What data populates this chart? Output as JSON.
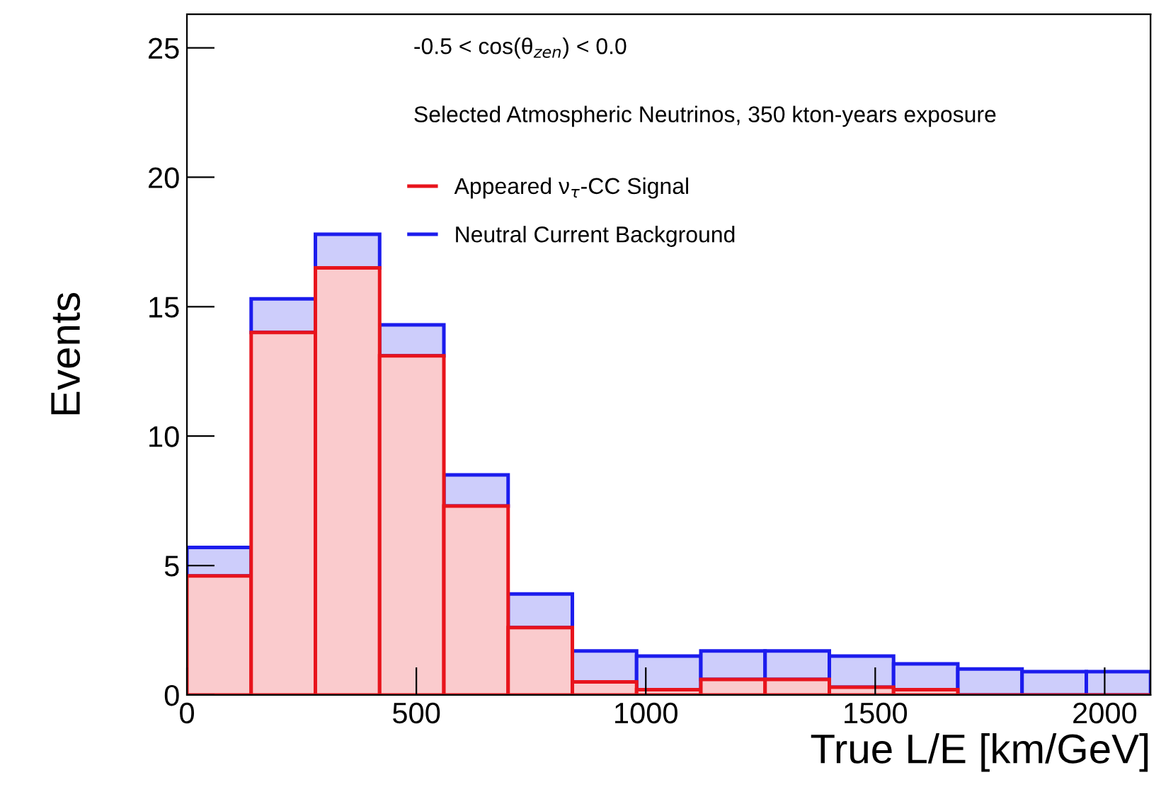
{
  "chart_data": {
    "type": "bar",
    "stacked": true,
    "xlabel": "True L/E [km/GeV]",
    "ylabel": "Events",
    "x": [
      70,
      210,
      350,
      490,
      630,
      770,
      910,
      1050,
      1190,
      1330,
      1470,
      1610,
      1750,
      1890,
      2030
    ],
    "series": [
      {
        "name": "Appeared ν$_{τ}$-CC Signal",
        "color": "#e8141c",
        "values": [
          4.6,
          14.0,
          16.5,
          13.1,
          7.3,
          2.6,
          0.5,
          0.2,
          0.6,
          0.6,
          0.3,
          0.2,
          0.0,
          0.0,
          0.0
        ]
      },
      {
        "name": "Neutral Current Background",
        "color": "#1c1ced",
        "values": [
          1.1,
          1.3,
          1.3,
          1.2,
          1.2,
          1.3,
          1.2,
          1.3,
          1.1,
          1.1,
          1.2,
          1.0,
          1.0,
          0.9,
          0.9
        ]
      }
    ],
    "annotations": [
      "-0.5 < cos(θ$_{zen}$) < 0.0",
      "Selected Atmospheric Neutrinos, 350 kton-years exposure"
    ],
    "xlim": [
      0,
      2100
    ],
    "ylim": [
      0,
      26.3
    ],
    "xticks": [
      0,
      500,
      1000,
      1500,
      2000
    ],
    "yticks": [
      0,
      5,
      10,
      15,
      20,
      25
    ],
    "legend": "top",
    "grid": false
  }
}
